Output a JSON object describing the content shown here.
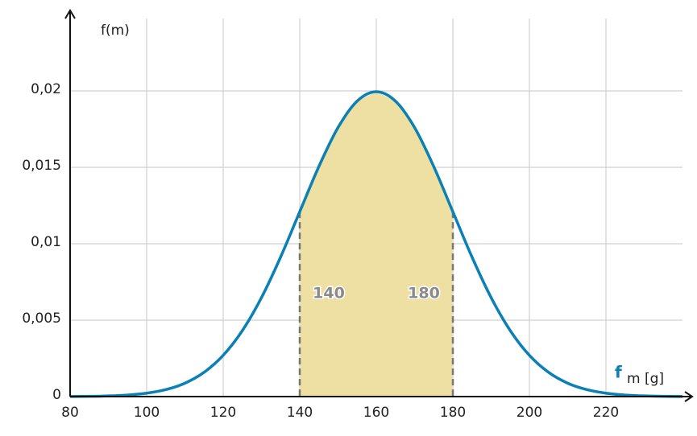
{
  "chart_data": {
    "type": "line",
    "y_axis_label": "f(m)",
    "x_axis_label": "m [g]",
    "x": [
      80,
      85,
      90,
      95,
      100,
      105,
      110,
      115,
      120,
      125,
      130,
      135,
      140,
      145,
      150,
      155,
      160,
      165,
      170,
      175,
      180,
      185,
      190,
      195,
      200,
      205,
      210,
      215,
      220,
      225,
      230,
      235,
      240
    ],
    "series": [
      {
        "name": "f",
        "color": "#0a80b4",
        "values": [
          6.7e-06,
          1.76e-05,
          4.37e-05,
          0.0001016,
          0.0002216,
          0.0004546,
          0.0008764,
          0.001587,
          0.0027,
          0.004315,
          0.006476,
          0.009132,
          0.012098,
          0.015056,
          0.017603,
          0.019333,
          0.019947,
          0.019333,
          0.017603,
          0.015056,
          0.012098,
          0.009132,
          0.006476,
          0.004315,
          0.0027,
          0.001587,
          0.0008764,
          0.0004546,
          0.0002216,
          0.0001016,
          4.37e-05,
          1.76e-05,
          6.7e-06
        ]
      }
    ],
    "highlight_range": [
      140,
      180
    ],
    "highlight_color": "#ede0a2",
    "annotations": [
      "140",
      "180"
    ],
    "xlim": [
      80,
      240
    ],
    "ylim": [
      0,
      0.025
    ],
    "xticks": [
      80,
      100,
      120,
      140,
      160,
      180,
      200,
      220
    ],
    "yticks": [
      0,
      {
        "value": 0.005,
        "label": "0,005"
      },
      {
        "value": 0.01,
        "label": "0,01"
      },
      {
        "value": 0.015,
        "label": "0,015"
      },
      {
        "value": 0.02,
        "label": "0,02"
      }
    ],
    "grid": true
  }
}
